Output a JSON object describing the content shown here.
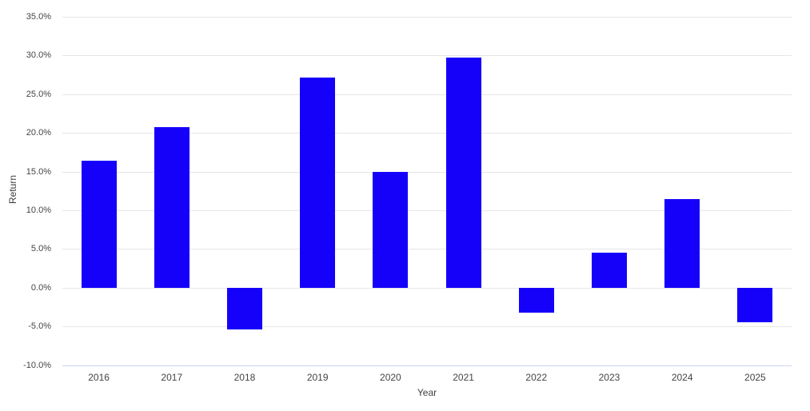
{
  "chart_data": {
    "type": "bar",
    "xlabel": "Year",
    "ylabel": "Return",
    "categories": [
      "2016",
      "2017",
      "2018",
      "2019",
      "2020",
      "2021",
      "2022",
      "2023",
      "2024",
      "2025"
    ],
    "values": [
      16.4,
      20.7,
      -5.4,
      27.1,
      14.9,
      29.7,
      -3.2,
      4.5,
      11.4,
      -4.5
    ],
    "value_unit": "%",
    "ylim": [
      -10,
      35
    ],
    "ytick_step": 5,
    "y_ticks": [
      {
        "value": 35,
        "label": "35.0%"
      },
      {
        "value": 30,
        "label": "30.0%"
      },
      {
        "value": 25,
        "label": "25.0%"
      },
      {
        "value": 20,
        "label": "20.0%"
      },
      {
        "value": 15,
        "label": "15.0%"
      },
      {
        "value": 10,
        "label": "10.0%"
      },
      {
        "value": 5,
        "label": "5.0%"
      },
      {
        "value": 0,
        "label": "0.0%"
      },
      {
        "value": -5,
        "label": "-5.0%"
      },
      {
        "value": -10,
        "label": "-10.0%"
      }
    ],
    "grid": "horizontal",
    "legend": "none",
    "colors": {
      "bar": "#1500fa",
      "gridline": "#e6e6e6",
      "axis_line": "#ccd6eb",
      "tick_text": "#444444",
      "axis_title_text": "#3d3d3d",
      "background": "#ffffff"
    }
  }
}
